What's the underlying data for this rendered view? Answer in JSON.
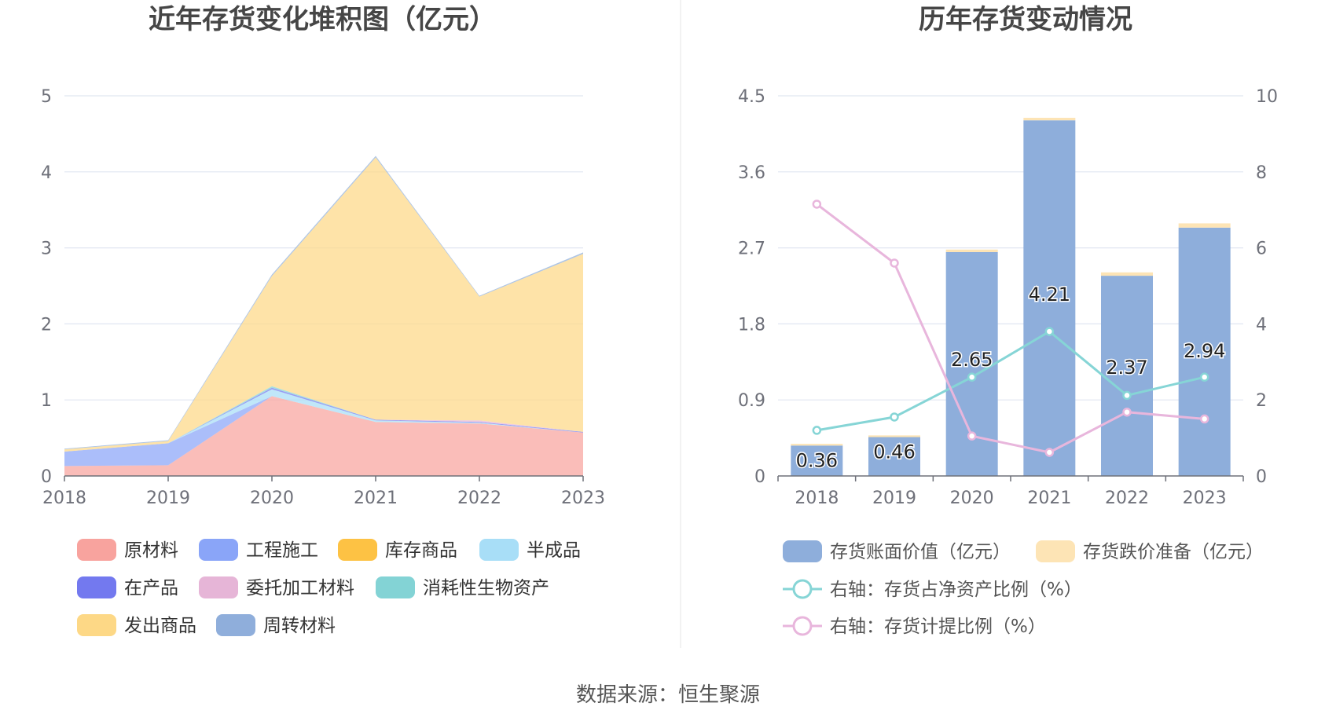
{
  "source_text": "数据来源：恒生聚源",
  "chart_data": [
    {
      "type": "area",
      "title": "近年存货变化堆积图（亿元）",
      "categories": [
        "2018",
        "2019",
        "2020",
        "2021",
        "2022",
        "2023"
      ],
      "ylim": [
        0,
        5
      ],
      "yticks": [
        "0",
        "1",
        "2",
        "3",
        "4",
        "5"
      ],
      "series": [
        {
          "name": "原材料",
          "color": "#f8a39e",
          "values": [
            0.13,
            0.14,
            1.05,
            0.71,
            0.69,
            0.57
          ]
        },
        {
          "name": "工程施工",
          "color": "#8aa5f8",
          "values": [
            0.19,
            0.29,
            0,
            0,
            0,
            0
          ]
        },
        {
          "name": "库存商品",
          "color": "#fdc244",
          "values": [
            0,
            0,
            0,
            0,
            0,
            0
          ]
        },
        {
          "name": "半成品",
          "color": "#a8def7",
          "values": [
            0,
            0,
            0.09,
            0.02,
            0.01,
            0
          ]
        },
        {
          "name": "在产品",
          "color": "#7379ef",
          "values": [
            0,
            0,
            0.02,
            0.01,
            0.01,
            0.01
          ]
        },
        {
          "name": "委托加工材料",
          "color": "#e6b5d7",
          "values": [
            0,
            0,
            0,
            0,
            0.02,
            0
          ]
        },
        {
          "name": "消耗性生物资产",
          "color": "#83d3d5",
          "values": [
            0,
            0,
            0.02,
            0,
            0,
            0
          ]
        },
        {
          "name": "发出商品",
          "color": "#fdd886",
          "values": [
            0.03,
            0.03,
            1.45,
            3.45,
            1.63,
            2.34
          ]
        },
        {
          "name": "周转材料",
          "color": "#8faedb",
          "values": [
            0.01,
            0.01,
            0.02,
            0.02,
            0.01,
            0.02
          ]
        }
      ]
    },
    {
      "type": "bar",
      "title": "历年存货变动情况",
      "categories": [
        "2018",
        "2019",
        "2020",
        "2021",
        "2022",
        "2023"
      ],
      "ylim": [
        0,
        4.5
      ],
      "yticks": [
        "0",
        "0.9",
        "1.8",
        "2.7",
        "3.6",
        "4.5"
      ],
      "y2lim": [
        0,
        10
      ],
      "y2ticks": [
        "0",
        "2",
        "4",
        "6",
        "8",
        "10"
      ],
      "series": [
        {
          "name": "存货账面价值（亿元）",
          "color": "#8eaedb",
          "values": [
            0.36,
            0.46,
            2.65,
            4.21,
            2.37,
            2.94
          ],
          "labels": [
            "0.36",
            "0.46",
            "2.65",
            "4.21",
            "2.37",
            "2.94"
          ]
        },
        {
          "name": "存货跌价准备（亿元）",
          "color": "#fde4b5",
          "values": [
            0.02,
            0.02,
            0.03,
            0.03,
            0.04,
            0.05
          ]
        },
        {
          "name": "右轴：存货占净资产比例（%）",
          "color": "#86d5d6",
          "axis": "right",
          "values": [
            1.2,
            1.55,
            2.6,
            3.8,
            2.12,
            2.6
          ]
        },
        {
          "name": "右轴：存货计提比例（%）",
          "color": "#e8b6dc",
          "axis": "right",
          "values": [
            7.15,
            5.6,
            1.05,
            0.62,
            1.68,
            1.5
          ]
        }
      ]
    }
  ]
}
